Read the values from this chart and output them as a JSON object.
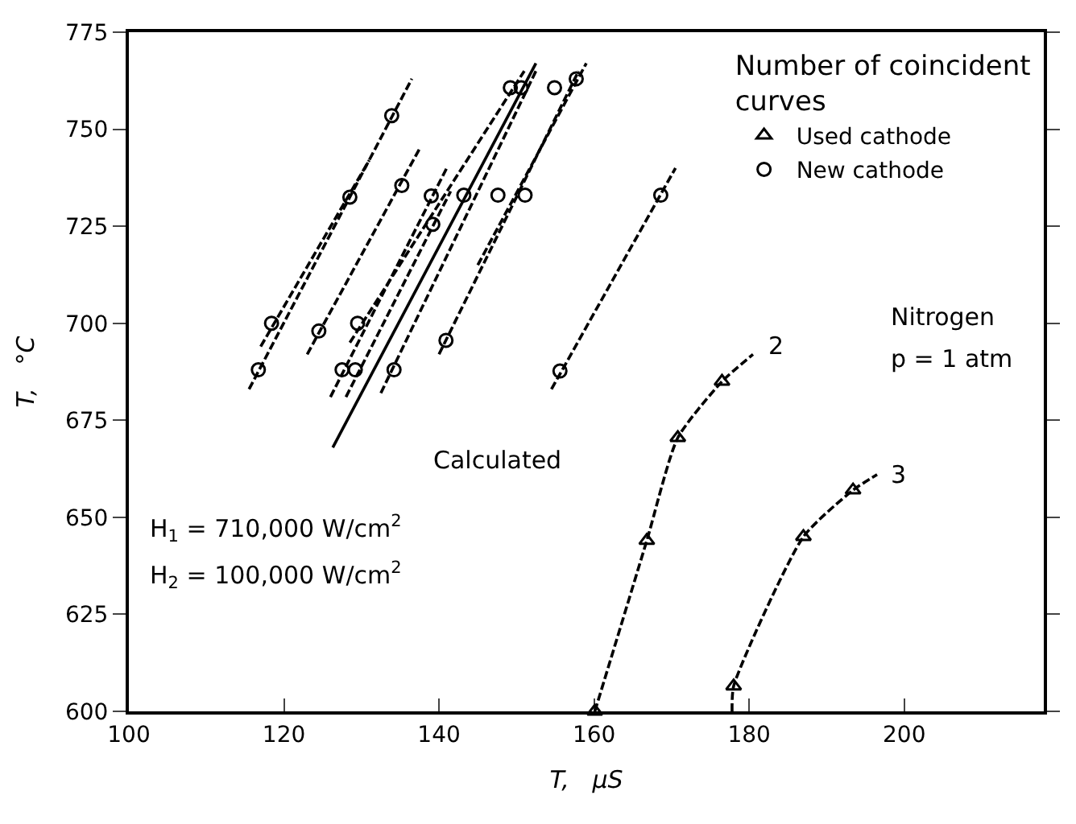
{
  "chart_data": {
    "type": "line",
    "xlabel": "T,   μS",
    "ylabel": "T,   °C",
    "legend_title": "Number of coincident curves",
    "xlim": [
      100,
      218
    ],
    "ylim": [
      600,
      775
    ],
    "xticks": [
      100,
      120,
      140,
      160,
      180,
      200
    ],
    "yticks": [
      600,
      625,
      650,
      675,
      700,
      725,
      750,
      775
    ],
    "legend": "top right",
    "series": [
      {
        "line_style": "dashed",
        "color": "#000000",
        "x": [
          115.5,
          136.5
        ],
        "values": [
          683,
          763
        ]
      },
      {
        "line_style": "dashed",
        "color": "#000000",
        "x": [
          117,
          131
        ],
        "values": [
          694,
          742
        ]
      },
      {
        "line_style": "dashed",
        "color": "#000000",
        "x": [
          123,
          137.5
        ],
        "values": [
          692,
          745
        ]
      },
      {
        "line_style": "dashed",
        "color": "#000000",
        "x": [
          126,
          141
        ],
        "values": [
          681,
          740
        ]
      },
      {
        "line_style": "dashed",
        "color": "#000000",
        "x": [
          128,
          141.5
        ],
        "values": [
          681,
          734
        ]
      },
      {
        "line_style": "dashed",
        "color": "#000000",
        "x": [
          128.5,
          151
        ],
        "values": [
          695,
          765
        ]
      },
      {
        "line_style": "dashed",
        "color": "#000000",
        "x": [
          132.5,
          152.5
        ],
        "values": [
          682,
          765
        ]
      },
      {
        "line_style": "dashed",
        "color": "#000000",
        "x": [
          140,
          158
        ],
        "values": [
          692,
          765
        ]
      },
      {
        "line_style": "dashed",
        "color": "#000000",
        "x": [
          145,
          159
        ],
        "values": [
          715,
          767
        ]
      },
      {
        "line_style": "dashed",
        "color": "#000000",
        "x": [
          154.5,
          170.5
        ],
        "values": [
          683,
          740
        ]
      },
      {
        "line_style": "solid",
        "color": "#000000",
        "x": [
          126.3,
          152.5
        ],
        "values": [
          668,
          767
        ]
      },
      {
        "line_style": "dashed",
        "color": "#000000",
        "x": [
          160.1,
          166.8,
          170.8,
          176.5,
          180.5
        ],
        "values": [
          600,
          644,
          670.5,
          685,
          692
        ]
      },
      {
        "line_style": "dashed",
        "color": "#000000",
        "x": [
          177.8,
          178,
          187,
          193.4,
          196.5
        ],
        "values": [
          600,
          606.5,
          645,
          657,
          661
        ]
      },
      {
        "type": "scatter",
        "name": "Used cathode",
        "marker": "triangle",
        "color": "#000000",
        "x": [
          160.1,
          166.8,
          170.8,
          176.5,
          178,
          187,
          193.4
        ],
        "values": [
          600,
          644,
          670.5,
          685,
          606.5,
          645,
          657
        ]
      },
      {
        "type": "scatter",
        "name": "New cathode",
        "marker": "circle",
        "color": "#000000",
        "x": [
          133.9,
          128.5,
          118.4,
          116.7,
          135.2,
          124.5,
          129.5,
          127.5,
          129.2,
          139.0,
          143.2,
          139.2,
          134.2,
          140.9,
          147.6,
          149.2,
          150.6,
          154.9,
          157.7,
          151.1,
          168.6,
          155.6
        ],
        "values": [
          753.5,
          732.5,
          700,
          688,
          735.5,
          698,
          700,
          688,
          688,
          732.8,
          733,
          725.5,
          688,
          695.6,
          733,
          760.7,
          760.7,
          760.7,
          763,
          733,
          733,
          687.7
        ]
      }
    ],
    "annotations": [
      "Calculated",
      "2",
      "3",
      "H$_{1}$ = 710,000 W/cm$^{2}$",
      "H$_{2}$ = 100,000 W/cm$^{2}$",
      "Nitrogen",
      "p = 1 atm"
    ]
  }
}
